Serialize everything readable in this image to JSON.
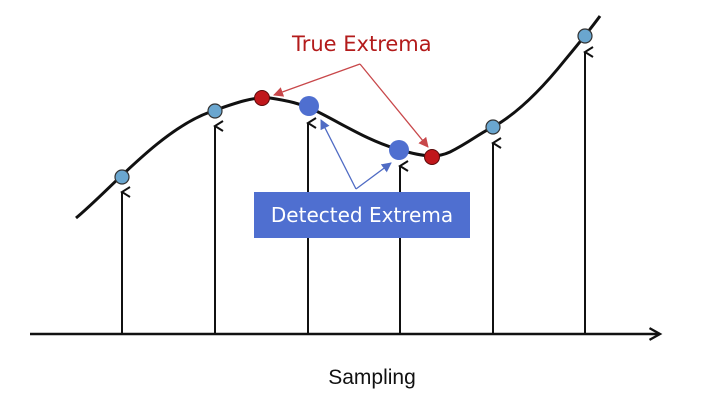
{
  "labels": {
    "true_extrema": "True Extrema",
    "detected_extrema": "Detected Extrema",
    "axis": "Sampling"
  },
  "colors": {
    "curve": "#111111",
    "sample_fill": "#6aa6cf",
    "true_extrema_fill": "#c0171b",
    "detected_extrema_fill": "#4f6fd0",
    "true_label_text": "#b31b1b",
    "true_arrow": "#c8474a",
    "detected_box_fill": "#4f6fd0",
    "detected_box_text": "#ffffff",
    "detected_arrow": "#4f6bc4"
  },
  "diagram": {
    "sample_count": 6,
    "true_extrema_count": 2,
    "detected_extrema_count": 2
  }
}
